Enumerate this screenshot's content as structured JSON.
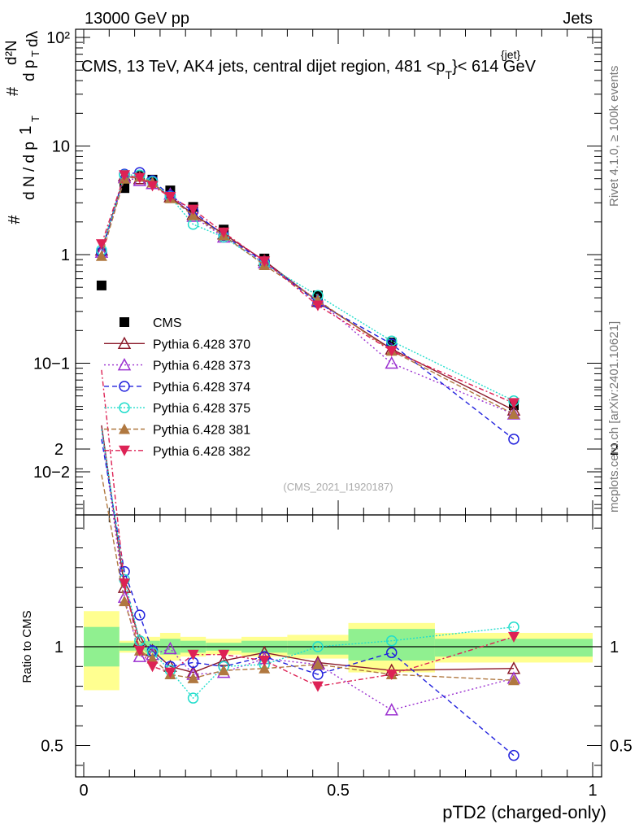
{
  "header": {
    "left": "13000 GeV pp",
    "right": "Jets",
    "title": "CMS, 13 TeV, AK4 jets, central dijet region, 481 <p",
    "title_sub": "T",
    "title_sup": "{jet}",
    "title_tail": "}< 614 GeV",
    "watermark": "(CMS_2021_I1920187)",
    "side_top": "Rivet 4.1.0, ≥ 100k events",
    "side_bottom": "mcplots.cern.ch [arXiv:2401.10621]"
  },
  "yaxis_main_label": "1/N dN/dp_T d²N/dp_T dλ",
  "yaxis_ratio_label": "Ratio to CMS",
  "xaxis_label": "pTD2 (charged-only)",
  "colors": {
    "cms": "#000000",
    "p370": "#8b1a2a",
    "p373": "#9b30d0",
    "p374": "#2222dd",
    "p375": "#22ddcc",
    "p381": "#b07840",
    "p382": "#dd2255",
    "band_inner": "#90f090",
    "band_outer": "#ffff90"
  },
  "chart_data": [
    {
      "type": "line",
      "panel": "main",
      "yscale": "log",
      "xlim": [
        0,
        1
      ],
      "ylim": [
        0.004,
        130
      ],
      "x_ticks": [
        "0",
        "0.5",
        "1"
      ],
      "y_ticks": [
        "10−2",
        "10−1",
        "1",
        "10",
        "10²"
      ],
      "x": [
        0.035,
        0.08,
        0.11,
        0.135,
        0.17,
        0.215,
        0.275,
        0.355,
        0.46,
        0.605,
        0.845
      ],
      "series": [
        {
          "name": "CMS",
          "values": [
            0.52,
            4.1,
            5.3,
            4.9,
            3.9,
            2.75,
            1.7,
            0.92,
            0.42,
            0.155,
            0.041
          ]
        },
        {
          "name": "Pythia 6.428 370",
          "values": [
            1.1,
            5.3,
            5.0,
            4.5,
            3.4,
            2.35,
            1.55,
            0.88,
            0.37,
            0.135,
            0.037
          ]
        },
        {
          "name": "Pythia 6.428 373",
          "values": [
            1.05,
            5.1,
            4.8,
            4.5,
            3.6,
            2.25,
            1.45,
            0.84,
            0.38,
            0.1,
            0.034
          ]
        },
        {
          "name": "Pythia 6.428 374",
          "values": [
            1.05,
            5.5,
            5.7,
            4.8,
            3.5,
            2.5,
            1.5,
            0.86,
            0.36,
            0.15,
            0.02
          ]
        },
        {
          "name": "Pythia 6.428 375",
          "values": [
            1.1,
            5.4,
            5.4,
            4.7,
            3.4,
            1.9,
            1.45,
            0.82,
            0.42,
            0.16,
            0.045
          ]
        },
        {
          "name": "Pythia 6.428 381",
          "values": [
            0.97,
            5.0,
            5.2,
            4.6,
            3.3,
            2.3,
            1.5,
            0.8,
            0.38,
            0.13,
            0.034
          ]
        },
        {
          "name": "Pythia 6.428 382",
          "values": [
            1.25,
            5.4,
            5.1,
            4.3,
            3.4,
            2.6,
            1.6,
            0.87,
            0.34,
            0.13,
            0.043
          ]
        }
      ]
    },
    {
      "type": "line",
      "panel": "ratio",
      "xlim": [
        0,
        1
      ],
      "ylim": [
        0.35,
        2.35
      ],
      "x_ticks": [
        "0",
        "0.5",
        "1"
      ],
      "y_ticks": [
        "0.5",
        "1",
        "2"
      ],
      "x": [
        0.035,
        0.08,
        0.11,
        0.135,
        0.17,
        0.215,
        0.275,
        0.355,
        0.46,
        0.605,
        0.845
      ],
      "bins": [
        [
          0.0,
          0.07
        ],
        [
          0.07,
          0.1
        ],
        [
          0.1,
          0.12
        ],
        [
          0.12,
          0.15
        ],
        [
          0.15,
          0.19
        ],
        [
          0.19,
          0.24
        ],
        [
          0.24,
          0.31
        ],
        [
          0.31,
          0.4
        ],
        [
          0.4,
          0.52
        ],
        [
          0.52,
          0.69
        ],
        [
          0.69,
          1.0
        ]
      ],
      "band_inner": [
        [
          0.9,
          1.1
        ],
        [
          0.98,
          1.02
        ],
        [
          0.98,
          1.02
        ],
        [
          0.97,
          1.03
        ],
        [
          0.96,
          1.04
        ],
        [
          0.97,
          1.03
        ],
        [
          0.98,
          1.02
        ],
        [
          0.97,
          1.03
        ],
        [
          0.96,
          1.03
        ],
        [
          0.93,
          1.09
        ],
        [
          0.95,
          1.04
        ]
      ],
      "band_outer": [
        [
          0.78,
          1.18
        ],
        [
          0.97,
          1.03
        ],
        [
          0.97,
          1.03
        ],
        [
          0.95,
          1.05
        ],
        [
          0.93,
          1.07
        ],
        [
          0.95,
          1.05
        ],
        [
          0.96,
          1.04
        ],
        [
          0.95,
          1.05
        ],
        [
          0.94,
          1.06
        ],
        [
          0.87,
          1.12
        ],
        [
          0.92,
          1.07
        ]
      ],
      "series": [
        {
          "name": "Pythia 6.428 370",
          "values": [
            2.12,
            1.3,
            1.03,
            0.98,
            0.9,
            0.87,
            0.93,
            0.97,
            0.92,
            0.88,
            0.89
          ]
        },
        {
          "name": "Pythia 6.428 373",
          "values": [
            2.1,
            1.25,
            0.95,
            0.96,
            0.99,
            0.86,
            0.87,
            0.94,
            0.91,
            0.68,
            0.84
          ]
        },
        {
          "name": "Pythia 6.428 374",
          "values": [
            2.05,
            1.38,
            1.16,
            0.98,
            0.9,
            0.92,
            0.9,
            0.95,
            0.86,
            0.97,
            0.45
          ]
        },
        {
          "name": "Pythia 6.428 375",
          "values": [
            2.1,
            1.34,
            1.03,
            0.97,
            0.88,
            0.74,
            0.9,
            0.91,
            1.0,
            1.03,
            1.1
          ]
        },
        {
          "name": "Pythia 6.428 381",
          "values": [
            1.87,
            1.23,
            0.98,
            0.94,
            0.86,
            0.84,
            0.88,
            0.89,
            0.91,
            0.86,
            0.83
          ]
        },
        {
          "name": "Pythia 6.428 382",
          "values": [
            2.4,
            1.32,
            0.98,
            0.9,
            0.87,
            0.96,
            0.96,
            0.93,
            0.8,
            0.86,
            1.05
          ]
        }
      ]
    }
  ]
}
